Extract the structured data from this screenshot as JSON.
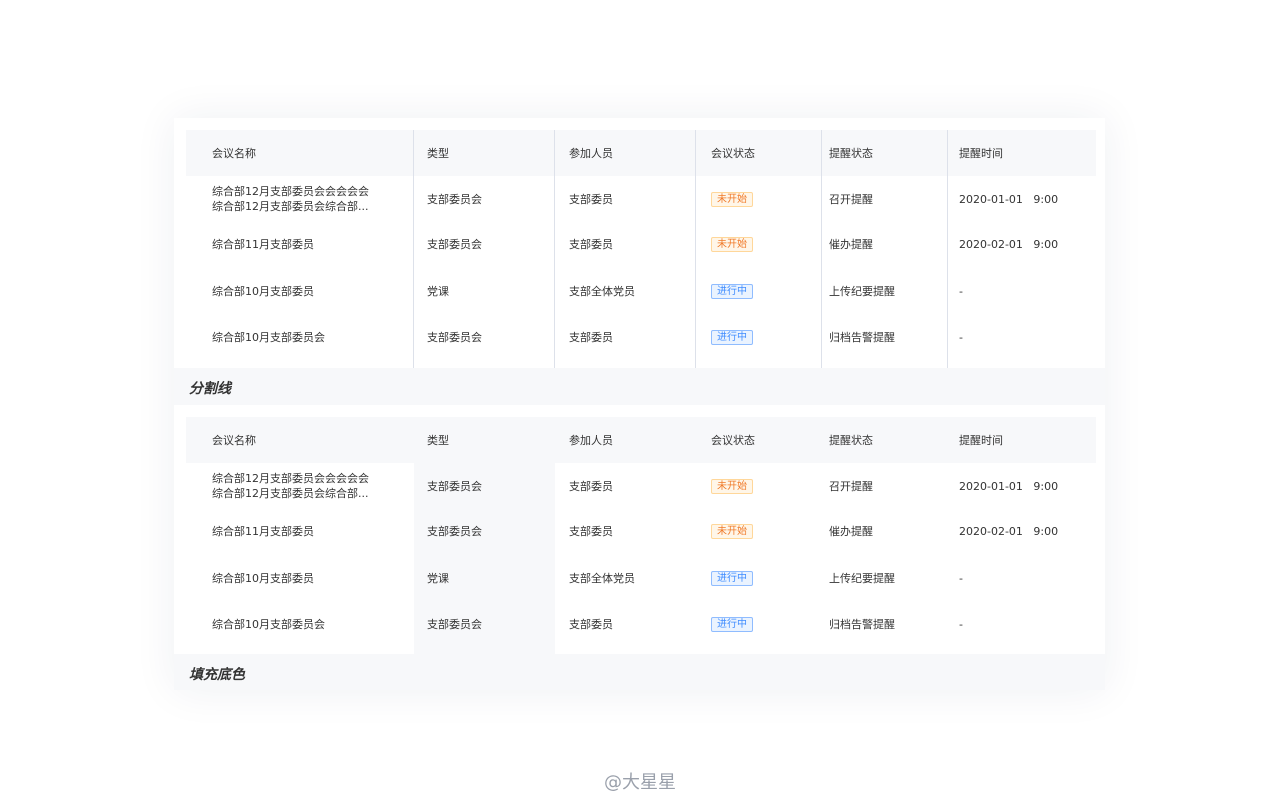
{
  "columns": [
    "会议名称",
    "类型",
    "参加人员",
    "会议状态",
    "提醒状态",
    "提醒时间"
  ],
  "rows": [
    {
      "name": [
        "综合部12月支部委员会会会会会",
        "综合部12月支部委员会综合部..."
      ],
      "type": "支部委员会",
      "members": "支部委员",
      "status": "未开始",
      "status_color": "orange",
      "remind": "召开提醒",
      "time": "2020-01-01   9:00"
    },
    {
      "name": [
        "综合部11月支部委员"
      ],
      "type": "支部委员会",
      "members": "支部委员",
      "status": "未开始",
      "status_color": "orange",
      "remind": "催办提醒",
      "time": "2020-02-01   9:00"
    },
    {
      "name": [
        "综合部10月支部委员"
      ],
      "type": "党课",
      "members": "支部全体党员",
      "status": "进行中",
      "status_color": "blue",
      "remind": "上传纪要提醒",
      "time": "-"
    },
    {
      "name": [
        "综合部10月支部委员会"
      ],
      "type": "支部委员会",
      "members": "支部委员",
      "status": "进行中",
      "status_color": "blue",
      "remind": "归档告警提醒",
      "time": "-"
    }
  ],
  "labels": {
    "divider": "分割线",
    "fill": "填充底色"
  },
  "colors": {
    "orange_tag": "#f07a2a",
    "blue_tag": "#3f8cff",
    "header_bg": "#f7f8fa"
  },
  "watermark": "@大星星"
}
